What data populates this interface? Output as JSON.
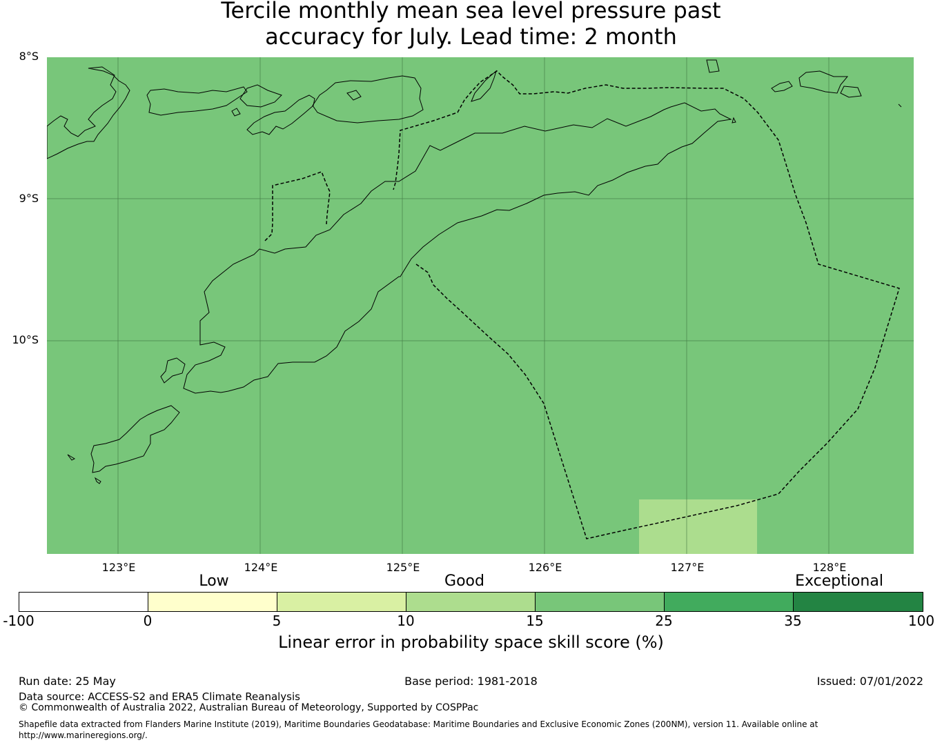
{
  "title_line1": "Tercile monthly mean sea level pressure past",
  "title_line2": "accuracy for July. Lead time: 2 month",
  "map": {
    "background_color": "#78c67a",
    "patch_color": "#acdd8e",
    "lat_labels": [
      "8°S",
      "9°S",
      "10°S"
    ],
    "lon_labels": [
      "123°E",
      "124°E",
      "125°E",
      "126°E",
      "127°E",
      "128°E"
    ]
  },
  "legend": {
    "categories": [
      "Low",
      "Good",
      "Exceptional"
    ],
    "ticks": [
      "-100",
      "0",
      "5",
      "10",
      "15",
      "25",
      "35",
      "100"
    ],
    "colors": [
      "#ffffff",
      "#ffffcc",
      "#d9f0a3",
      "#addd8e",
      "#78c679",
      "#41ab5d",
      "#238443"
    ],
    "title": "Linear error in probability space skill score (%)"
  },
  "footer": {
    "run_date": "Run date: 25 May",
    "base_period": "Base period: 1981-2018",
    "issued": "Issued: 07/01/2022",
    "data_source": "Data source: ACCESS-S2 and ERA5 Climate Reanalysis",
    "copyright": "© Commonwealth of Australia 2022, Australian Bureau of Meteorology, Supported by COSPPac",
    "shapefile_line1": "Shapefile data extracted from Flanders Marine Institute (2019), Maritime Boundaries Geodatabase: Maritime Boundaries and Exclusive Economic Zones (200NM), version 11. Available online at",
    "shapefile_line2": "http://www.marineregions.org/."
  }
}
